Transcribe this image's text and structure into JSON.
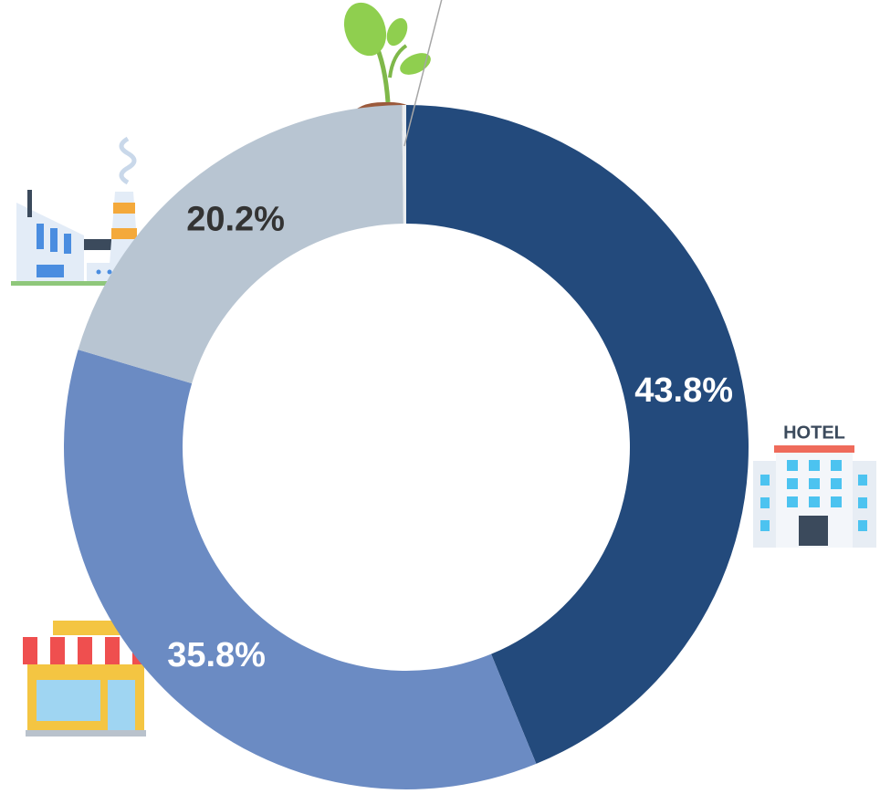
{
  "chart_data": {
    "type": "pie",
    "categories": [
      "HOTEL",
      null,
      null,
      null
    ],
    "values": [
      43.8,
      35.8,
      20.2,
      0.2
    ],
    "value_labels": [
      "43.8%",
      "35.8%",
      "20.2%",
      "0.2%"
    ],
    "colors": [
      "#234a7c",
      "#6b8bc3",
      "#b8c5d2",
      "#e9edf0"
    ]
  }
}
